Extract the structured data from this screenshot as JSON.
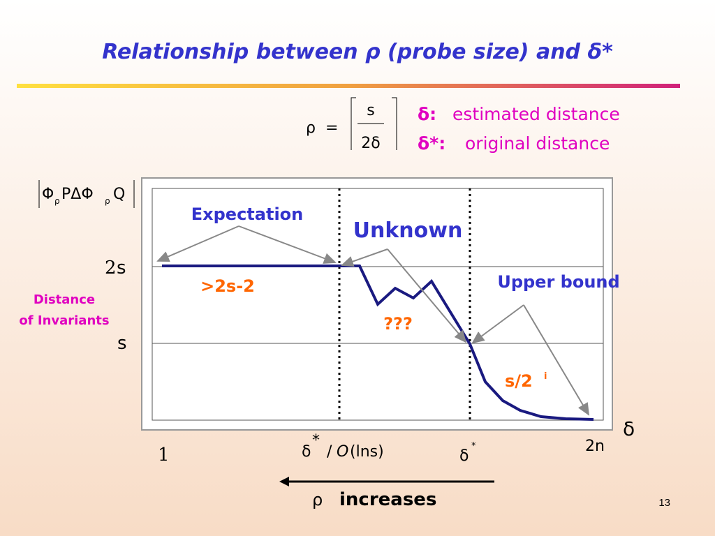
{
  "title": "Relationship between ρ (probe size) and δ*",
  "formula": {
    "lhs": "ρ",
    "eq": "=",
    "numerator": "s",
    "denominator": "2δ"
  },
  "definitions": [
    {
      "symbol": "δ:",
      "text": "estimated distance"
    },
    {
      "symbol": "δ*:",
      "text": "original distance"
    }
  ],
  "y_axis_label": {
    "parts": [
      "Φ",
      "ρ",
      "PΔΦ",
      "ρ",
      "Q"
    ]
  },
  "y_axis_title": [
    "Distance",
    "of Invariants"
  ],
  "y_labels": [
    {
      "coef": "2",
      "var": "s"
    },
    {
      "var": "s"
    }
  ],
  "x_labels": {
    "start": "1",
    "mid1": {
      "sym": "δ",
      "sup": "*",
      "rest1": "/",
      "rest2": "O",
      "rest3": "(lns)"
    },
    "mid2": {
      "sym": "δ",
      "sup": "*"
    },
    "end": "2n",
    "axis": "δ"
  },
  "annotations": {
    "expectation": "Expectation",
    "unknown": "Unknown",
    "upper_bound": "Upper bound",
    "lower": ">2s-2",
    "question": "???",
    "decay": "s/2",
    "decay_sup": "i"
  },
  "footer": {
    "rho": "ρ",
    "increases": "increases"
  },
  "page_number": "13"
}
